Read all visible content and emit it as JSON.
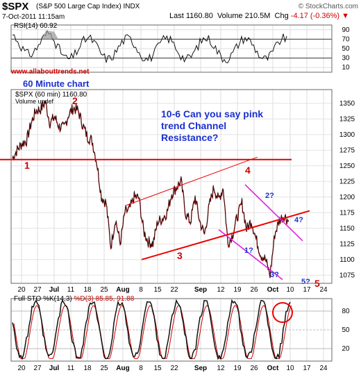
{
  "header": {
    "symbol": "$SPX",
    "name": "(S&P 500 Large Cap Index) INDX",
    "date": "7-Oct-2011 11:15am",
    "last_label": "Last",
    "last_value": "1160.80",
    "volume_label": "Volume",
    "volume_value": "210.5M",
    "chg_label": "Chg",
    "chg_value": "-4.17 (-0.36%)",
    "chg_arrow": "▼",
    "logo": "© StockCharts.com"
  },
  "rsi_panel": {
    "label": "RSI(14) 60.92",
    "ticks": [
      "90",
      "70",
      "50",
      "30",
      "10"
    ],
    "tick_values": [
      90,
      70,
      50,
      30,
      10
    ]
  },
  "annotations": {
    "website": "www.allabouttrends.net",
    "title": "60 Minute chart",
    "price_label": "$SPX (60 min) 1160.80",
    "volume_label": "Volume undef",
    "note": "10-6 Can you say pink trend Channel Resistance?",
    "wave_labels": [
      "1",
      "2",
      "3",
      "4",
      "5",
      "1?",
      "2?",
      "3?",
      "4?",
      "5?"
    ]
  },
  "sto_panel": {
    "label_prefix": "Full STO",
    "label_k": "%K(14,3)",
    "label_d": "%D(3) 85.85,",
    "label_dval": "91.88",
    "ticks": [
      "80",
      "50",
      "20"
    ],
    "tick_values": [
      80,
      50,
      20
    ]
  },
  "x_axis": {
    "labels": [
      "20",
      "27",
      "Jul",
      "11",
      "18",
      "25",
      "Aug",
      "8",
      "15",
      "22",
      "Sep",
      "12",
      "19",
      "26",
      "Oct",
      "10",
      "17",
      "24"
    ]
  },
  "chart_data": {
    "type": "line",
    "price_ticks": [
      "1350",
      "1325",
      "1300",
      "1275",
      "1250",
      "1225",
      "1200",
      "1175",
      "1150",
      "1125",
      "1100",
      "1075"
    ],
    "ylim": [
      1062,
      1372
    ],
    "price_anchors": [
      [
        "20",
        1262
      ],
      [
        "22",
        1275
      ],
      [
        "24",
        1285
      ],
      [
        "27",
        1290
      ],
      [
        "29",
        1318
      ],
      [
        "Jul",
        1338
      ],
      [
        "5",
        1340
      ],
      [
        "7",
        1352
      ],
      [
        "11",
        1318
      ],
      [
        "13",
        1328
      ],
      [
        "15",
        1312
      ],
      [
        "18",
        1310
      ],
      [
        "20",
        1332
      ],
      [
        "22",
        1342
      ],
      [
        "25",
        1338
      ],
      [
        "27",
        1315
      ],
      [
        "29",
        1296
      ],
      [
        "Aug",
        1290
      ],
      [
        "2",
        1255
      ],
      [
        "4",
        1200
      ],
      [
        "5",
        1190
      ],
      [
        "8",
        1120
      ],
      [
        "9",
        1165
      ],
      [
        "10",
        1125
      ],
      [
        "11",
        1175
      ],
      [
        "12",
        1180
      ],
      [
        "15",
        1200
      ],
      [
        "17",
        1198
      ],
      [
        "18",
        1145
      ],
      [
        "19",
        1128
      ],
      [
        "22",
        1125
      ],
      [
        "23",
        1160
      ],
      [
        "25",
        1165
      ],
      [
        "26",
        1175
      ],
      [
        "29",
        1205
      ],
      [
        "31",
        1215
      ],
      [
        "Sep",
        1225
      ],
      [
        "2",
        1172
      ],
      [
        "6",
        1160
      ],
      [
        "8",
        1200
      ],
      [
        "9",
        1160
      ],
      [
        "12",
        1140
      ],
      [
        "14",
        1185
      ],
      [
        "16",
        1215
      ],
      [
        "19",
        1195
      ],
      [
        "20",
        1215
      ],
      [
        "22",
        1125
      ],
      [
        "23",
        1140
      ],
      [
        "26",
        1168
      ],
      [
        "27",
        1190
      ],
      [
        "28",
        1148
      ],
      [
        "29",
        1162
      ],
      [
        "30",
        1133
      ],
      [
        "Oct",
        1108
      ],
      [
        "3",
        1100
      ],
      [
        "4",
        1075
      ],
      [
        "5",
        1140
      ],
      [
        "6",
        1163
      ],
      [
        "7",
        1170
      ],
      [
        "7",
        1161
      ]
    ],
    "red_resistance": 1260,
    "red_channel": [
      [
        "8",
        1105
      ],
      [
        "10",
        1178
      ]
    ],
    "red_channel_upper": [
      [
        "8",
        1188
      ],
      [
        "19",
        1266
      ]
    ],
    "pink_channel": [
      [
        "16",
        1218
      ],
      [
        "5",
        1100
      ]
    ],
    "pink_channel2": [
      [
        "6",
        1165
      ],
      [
        "8",
        1125
      ]
    ]
  }
}
